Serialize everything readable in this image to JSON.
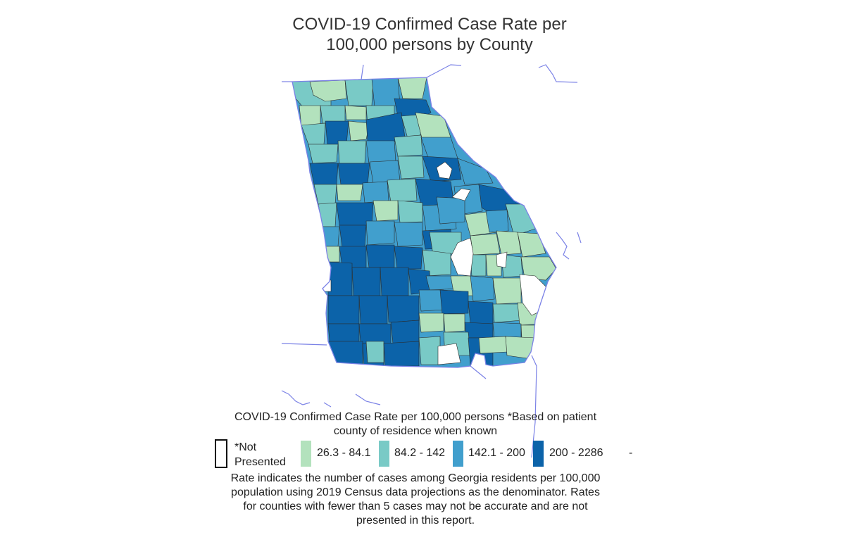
{
  "title": {
    "line1": "COVID-19 Confirmed Case Rate per",
    "line2": "100,000 persons by County"
  },
  "legend": {
    "heading_line1": "COVID-19 Confirmed Case Rate per 100,000 persons *Based on patient",
    "heading_line2": "county of residence when known",
    "not_presented_line1": "*Not",
    "not_presented_line2": "Presented",
    "classes": [
      {
        "label": "26.3 - 84.1",
        "color": "#b3e2bd"
      },
      {
        "label": "84.2 - 142",
        "color": "#79cac6"
      },
      {
        "label": "142.1 - 200",
        "color": "#419fcd"
      },
      {
        "label": "200 - 2286",
        "color": "#0c63a9"
      }
    ],
    "trailing_mark": "-"
  },
  "footnote": {
    "line1": "Rate indicates the number of cases among Georgia residents per 100,000",
    "line2": "population using 2019 Census data projections as the denominator. Rates",
    "line3": "for counties with fewer than 5 cases may not be accurate and are not",
    "line4": "presented in this report."
  },
  "map": {
    "state": "Georgia",
    "not_presented_color": "#ffffff",
    "border_color": "#7b82e6",
    "county_line_color": "#2b2b2b"
  }
}
